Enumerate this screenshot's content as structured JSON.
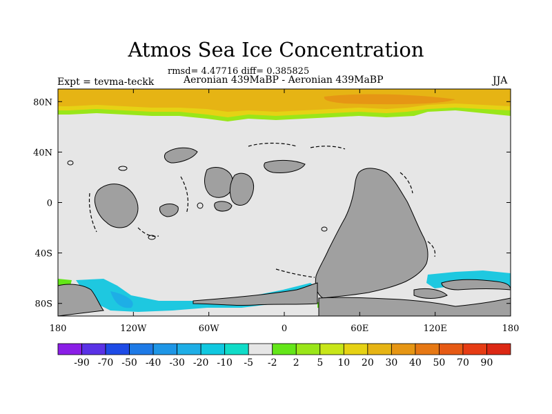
{
  "title": "Atmos Sea Ice Concentration",
  "stats": "rmsd= 4.47716 diff= 0.385825",
  "expt": "Expt = tevma-teckk",
  "comparison": "Aeronian 439MaBP - Aeronian 439MaBP",
  "season": "JJA",
  "lat_labels": [
    "80N",
    "40N",
    "0",
    "40S",
    "80S"
  ],
  "lat_values": [
    80,
    40,
    0,
    -40,
    -80
  ],
  "lon_labels": [
    "180",
    "120W",
    "60W",
    "0",
    "60E",
    "120E",
    "180"
  ],
  "lon_values": [
    -180,
    -120,
    -60,
    0,
    60,
    120,
    180
  ],
  "colorbar": {
    "labels": [
      "-90",
      "-70",
      "-50",
      "-40",
      "-30",
      "-20",
      "-10",
      "-5",
      "-2",
      "2",
      "5",
      "10",
      "20",
      "30",
      "40",
      "50",
      "70",
      "90"
    ],
    "colors": [
      "#8a1ee6",
      "#5a32e6",
      "#1e4be6",
      "#1e7ae6",
      "#1e96e6",
      "#1eaee6",
      "#10c8e0",
      "#10dcc8",
      "#e6e6e6",
      "#64e619",
      "#9ae619",
      "#c8e619",
      "#e6d214",
      "#e6b414",
      "#e69614",
      "#e67814",
      "#e65a14",
      "#e63c14",
      "#dc2814"
    ]
  },
  "colors": {
    "land": "#a0a0a0",
    "ocean_no_change": "#e6e6e6",
    "arctic_main": "#e6b414",
    "arctic_mid": "#e6d214",
    "arctic_edge": "#9ae619",
    "arctic_core": "#e69614",
    "antarctic_neg": "#1ec8e0",
    "antarctic_neg_strong": "#1eaee6",
    "antarctic_pos": "#64e619"
  }
}
